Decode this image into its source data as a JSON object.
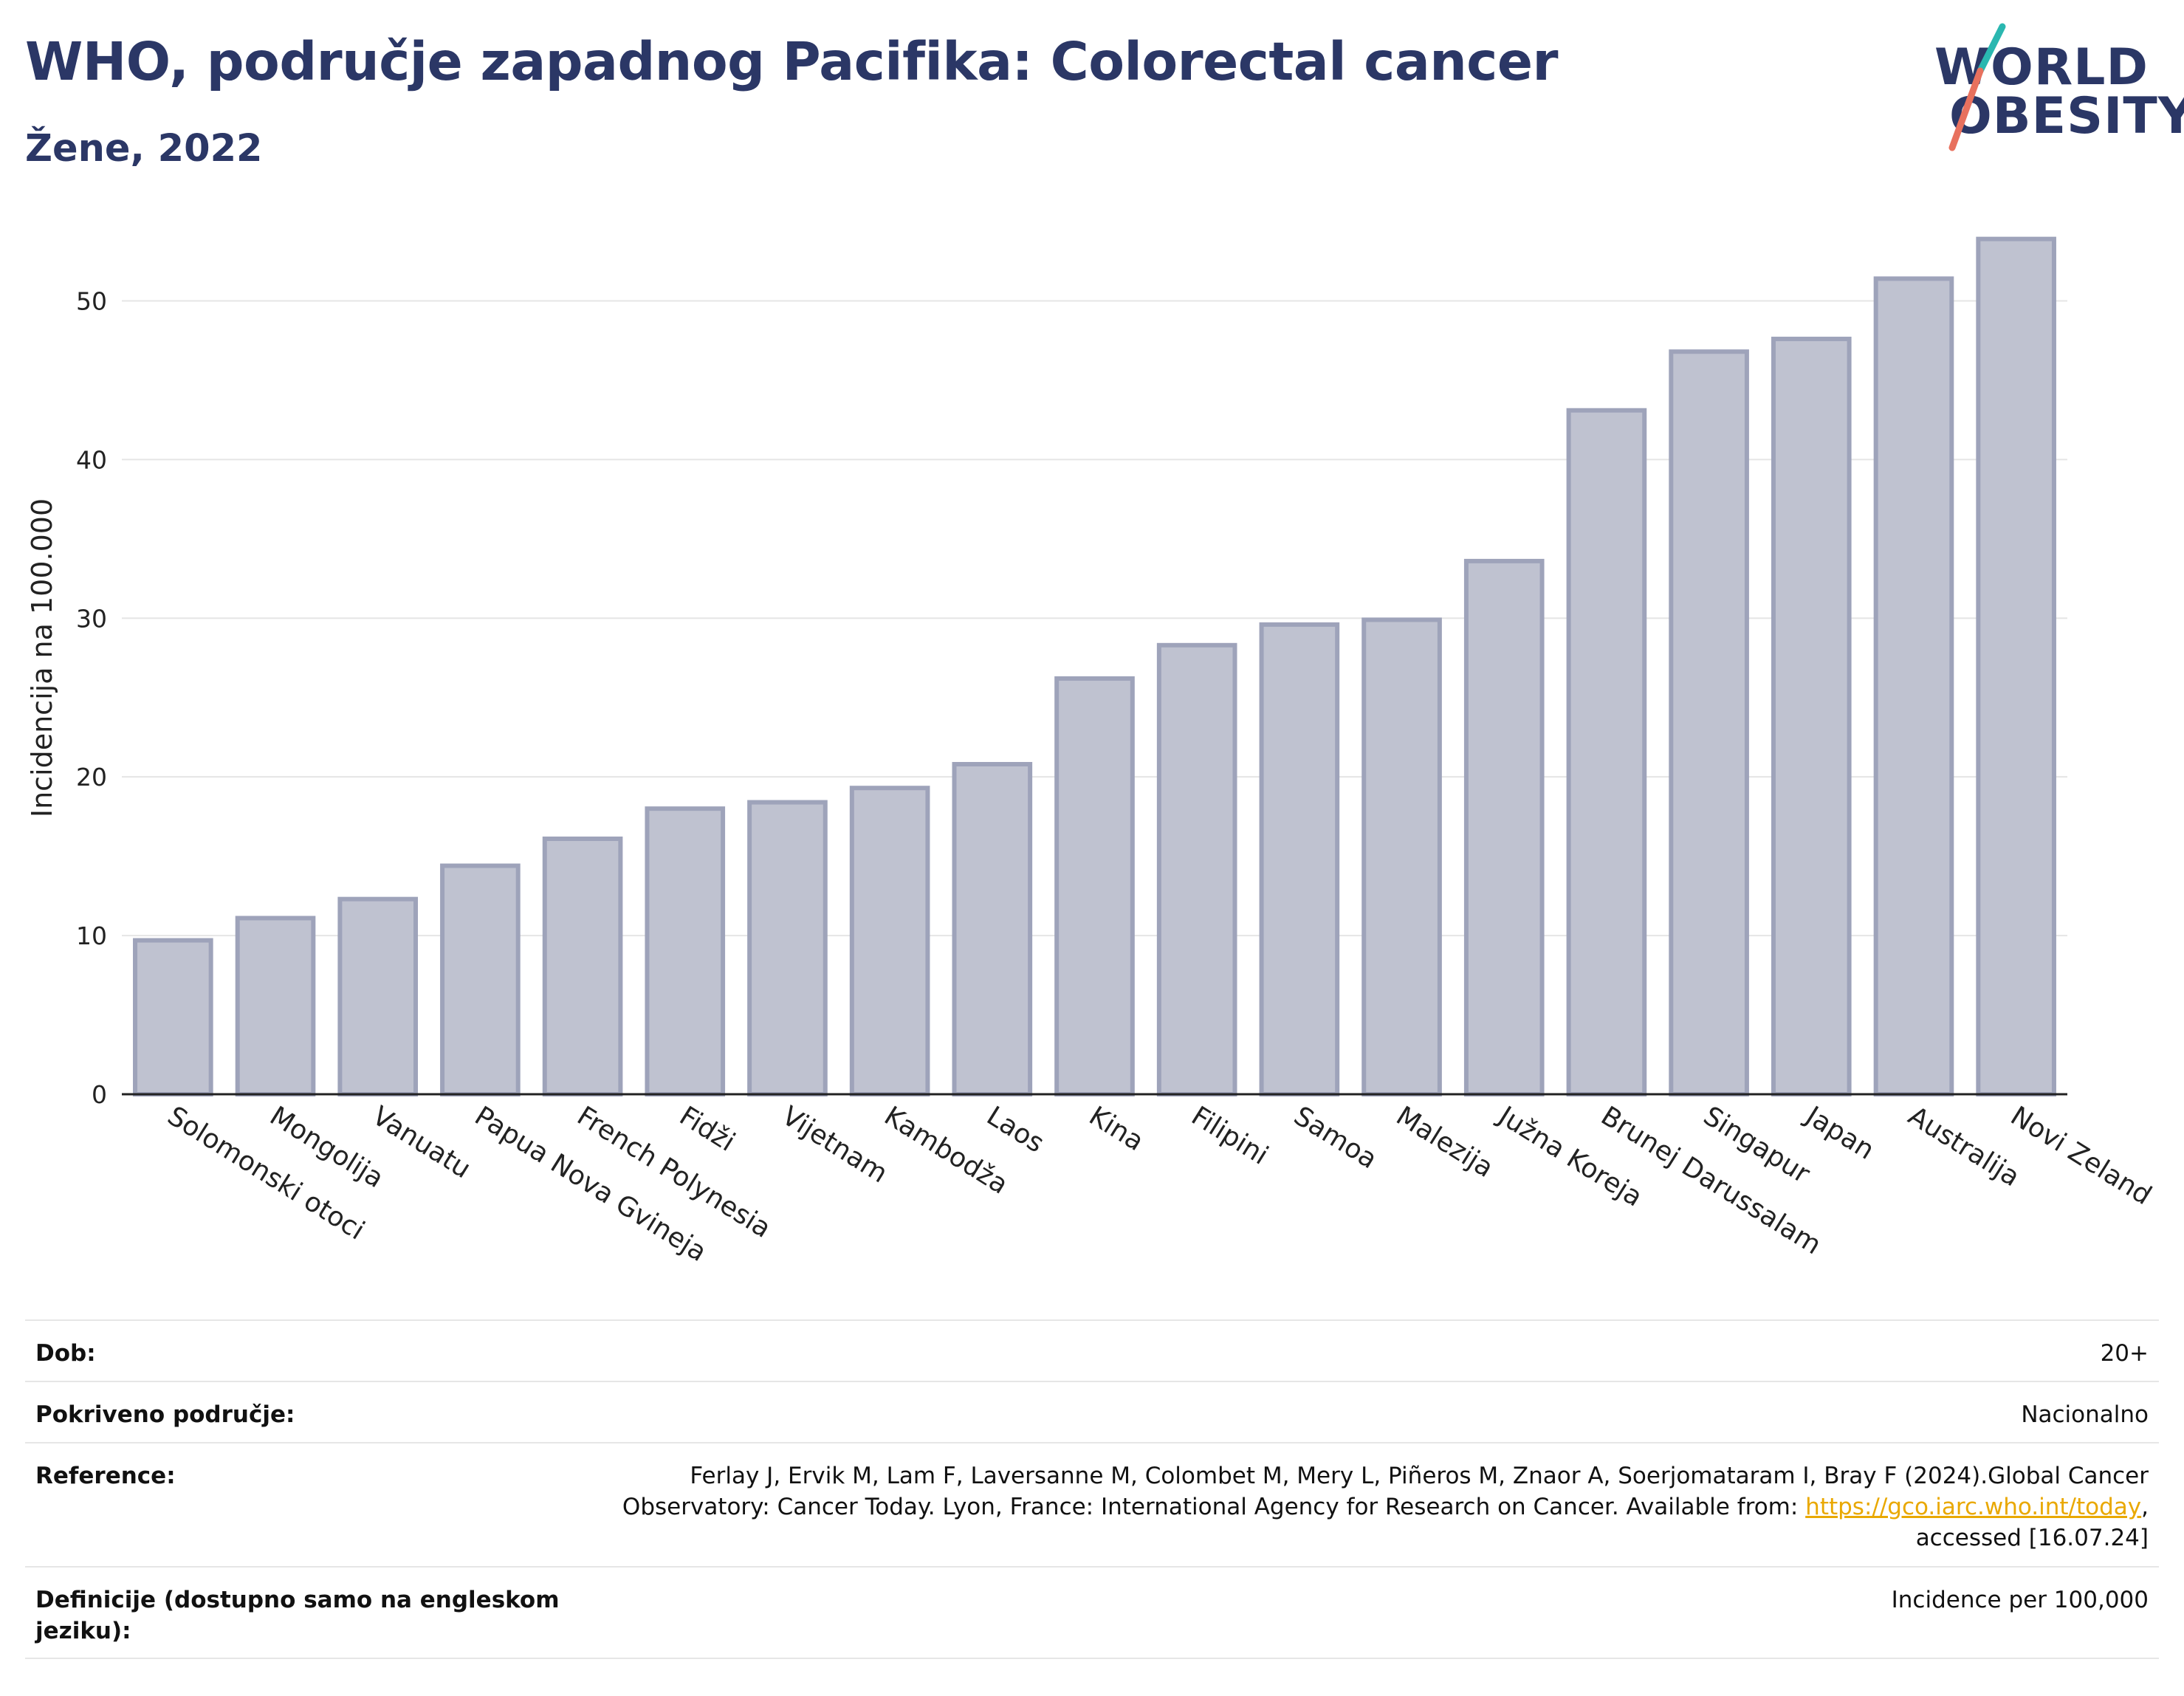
{
  "header": {
    "title": "WHO, područje zapadnog Pacifika: Colorectal cancer",
    "subtitle": "Žene, 2022"
  },
  "logo": {
    "line1": "WORLD",
    "line2": "OBESITY",
    "colors": {
      "text": "#2b3766",
      "slash_teal": "#2ab7b0",
      "slash_coral": "#e8715e"
    }
  },
  "chart_data": {
    "type": "bar",
    "ylabel": "Incidencija na 100.000",
    "ylim": [
      0,
      55
    ],
    "yticks": [
      0,
      10,
      20,
      30,
      40,
      50
    ],
    "grid": true,
    "bar_color": "#bfc2d0",
    "bar_edge_color": "#9ea3ba",
    "categories": [
      "Solomonski otoci",
      "Mongolija",
      "Vanuatu",
      "Papua Nova Gvineja",
      "French Polynesia",
      "Fidži",
      "Vijetnam",
      "Kambodža",
      "Laos",
      "Kina",
      "Filipini",
      "Samoa",
      "Malezija",
      "Južna Koreja",
      "Brunej Darussalam",
      "Singapur",
      "Japan",
      "Australija",
      "Novi Zeland"
    ],
    "values": [
      9.7,
      11.1,
      12.3,
      14.4,
      16.1,
      18.0,
      18.4,
      19.3,
      20.8,
      26.2,
      28.3,
      29.6,
      29.9,
      33.6,
      43.1,
      46.8,
      47.6,
      51.4,
      53.9
    ]
  },
  "info_table": {
    "age_label": "Dob:",
    "age_value": "20+",
    "coverage_label": "Pokriveno područje:",
    "coverage_value": "Nacionalno",
    "reference_label": "Reference:",
    "reference_line1": "Ferlay J, Ervik M, Lam F, Laversanne M, Colombet M, Mery L, Piñeros M, Znaor A, Soerjomataram I, Bray F (2024).Global Cancer",
    "reference_line2_pre": "Observatory: Cancer Today. Lyon, France: International Agency for Research on Cancer. Available from: ",
    "reference_link": "https://gco.iarc.who.int/today",
    "reference_line2_post": ",",
    "reference_line3": "accessed [16.07.24]",
    "definitions_label_line1": "Definicije (dostupno samo na engleskom",
    "definitions_label_line2": "jeziku):",
    "definitions_value": "Incidence per 100,000"
  }
}
